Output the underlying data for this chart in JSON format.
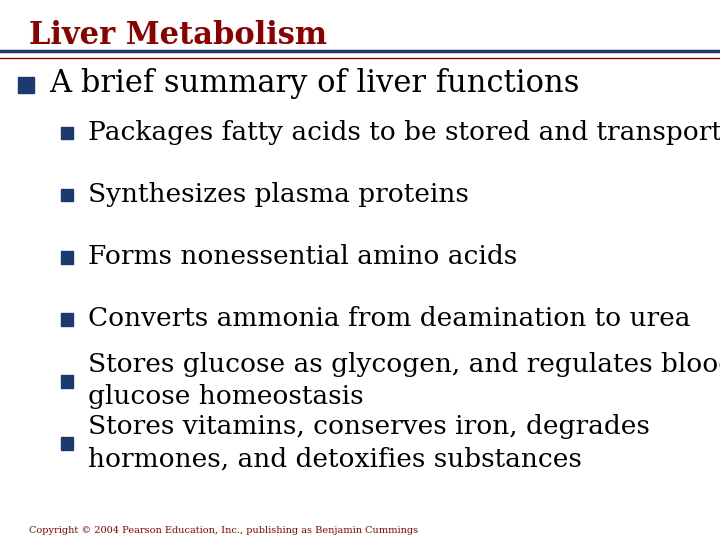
{
  "title": "Liver Metabolism",
  "title_color": "#8B0000",
  "title_fontsize": 22,
  "title_bold": true,
  "bg_color": "#FFFFFF",
  "header_line_color": "#1C3A6E",
  "header_line_color2": "#8B0000",
  "bullet_color": "#1C3A6E",
  "text_color": "#000000",
  "copyright": "Copyright © 2004 Pearson Education, Inc., publishing as Benjamin Cummings",
  "copyright_color": "#8B0000",
  "copyright_fontsize": 7,
  "level1_text": "A brief summary of liver functions",
  "level1_fontsize": 22,
  "level2_fontsize": 19,
  "level2_items": [
    "Packages fatty acids to be stored and transported",
    "Synthesizes plasma proteins",
    "Forms nonessential amino acids",
    "Converts ammonia from deamination to urea",
    "Stores glucose as glycogen, and regulates blood\nglucose homeostasis",
    "Stores vitamins, conserves iron, degrades\nhormones, and detoxifies substances"
  ]
}
